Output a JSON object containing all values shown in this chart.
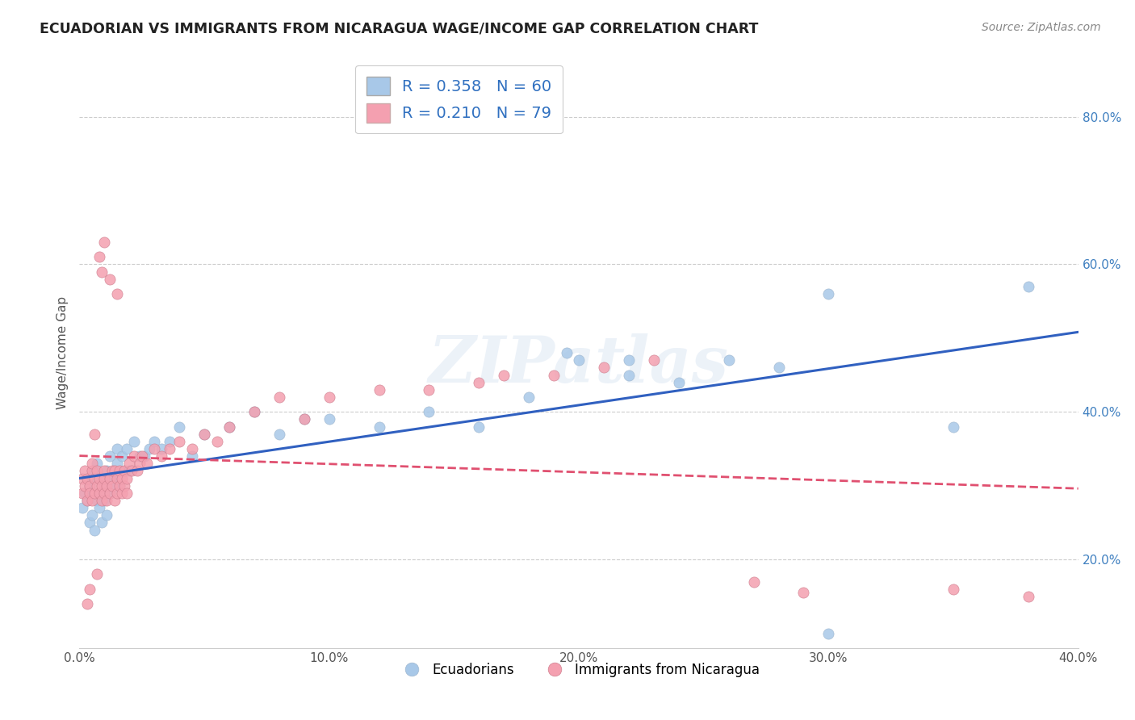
{
  "title": "ECUADORIAN VS IMMIGRANTS FROM NICARAGUA WAGE/INCOME GAP CORRELATION CHART",
  "source": "Source: ZipAtlas.com",
  "ylabel": "Wage/Income Gap",
  "xmin": 0.0,
  "xmax": 0.4,
  "ymin": 0.08,
  "ymax": 0.88,
  "yticks": [
    0.2,
    0.4,
    0.6,
    0.8
  ],
  "ytick_labels": [
    "20.0%",
    "40.0%",
    "60.0%",
    "80.0%"
  ],
  "xticks": [
    0.0,
    0.1,
    0.2,
    0.3,
    0.4
  ],
  "xtick_labels": [
    "0.0%",
    "10.0%",
    "20.0%",
    "30.0%",
    "40.0%"
  ],
  "blue_R": 0.358,
  "blue_N": 60,
  "pink_R": 0.21,
  "pink_N": 79,
  "blue_color": "#a8c8e8",
  "pink_color": "#f4a0b0",
  "blue_line_color": "#3060c0",
  "pink_line_color": "#e05070",
  "watermark": "ZIPatlas",
  "legend_label_blue": "Ecuadorians",
  "legend_label_pink": "Immigrants from Nicaragua",
  "blue_scatter_x": [
    0.001,
    0.002,
    0.003,
    0.004,
    0.004,
    0.005,
    0.005,
    0.006,
    0.006,
    0.007,
    0.007,
    0.008,
    0.008,
    0.009,
    0.009,
    0.01,
    0.01,
    0.011,
    0.011,
    0.012,
    0.012,
    0.013,
    0.014,
    0.015,
    0.015,
    0.016,
    0.017,
    0.018,
    0.019,
    0.02,
    0.022,
    0.024,
    0.026,
    0.028,
    0.03,
    0.033,
    0.036,
    0.04,
    0.045,
    0.05,
    0.06,
    0.07,
    0.08,
    0.09,
    0.1,
    0.12,
    0.14,
    0.16,
    0.18,
    0.2,
    0.22,
    0.24,
    0.26,
    0.28,
    0.3,
    0.22,
    0.195,
    0.38,
    0.3,
    0.35
  ],
  "blue_scatter_y": [
    0.27,
    0.29,
    0.28,
    0.3,
    0.25,
    0.31,
    0.26,
    0.32,
    0.24,
    0.33,
    0.28,
    0.27,
    0.29,
    0.31,
    0.25,
    0.3,
    0.28,
    0.32,
    0.26,
    0.29,
    0.34,
    0.31,
    0.3,
    0.33,
    0.35,
    0.3,
    0.34,
    0.32,
    0.35,
    0.32,
    0.36,
    0.34,
    0.34,
    0.35,
    0.36,
    0.35,
    0.36,
    0.38,
    0.34,
    0.37,
    0.38,
    0.4,
    0.37,
    0.39,
    0.39,
    0.38,
    0.4,
    0.38,
    0.42,
    0.47,
    0.45,
    0.44,
    0.47,
    0.46,
    0.56,
    0.47,
    0.48,
    0.57,
    0.1,
    0.38
  ],
  "pink_scatter_x": [
    0.001,
    0.001,
    0.002,
    0.002,
    0.003,
    0.003,
    0.004,
    0.004,
    0.005,
    0.005,
    0.005,
    0.006,
    0.006,
    0.007,
    0.007,
    0.008,
    0.008,
    0.009,
    0.009,
    0.01,
    0.01,
    0.01,
    0.011,
    0.011,
    0.012,
    0.012,
    0.013,
    0.013,
    0.014,
    0.014,
    0.015,
    0.015,
    0.016,
    0.016,
    0.017,
    0.017,
    0.018,
    0.018,
    0.019,
    0.019,
    0.02,
    0.021,
    0.022,
    0.023,
    0.024,
    0.025,
    0.027,
    0.03,
    0.033,
    0.036,
    0.04,
    0.045,
    0.05,
    0.055,
    0.06,
    0.07,
    0.08,
    0.09,
    0.1,
    0.12,
    0.14,
    0.16,
    0.17,
    0.19,
    0.21,
    0.23,
    0.008,
    0.012,
    0.009,
    0.015,
    0.01,
    0.006,
    0.007,
    0.004,
    0.003,
    0.38,
    0.35,
    0.29,
    0.27
  ],
  "pink_scatter_y": [
    0.31,
    0.29,
    0.32,
    0.3,
    0.28,
    0.31,
    0.3,
    0.29,
    0.32,
    0.28,
    0.33,
    0.31,
    0.29,
    0.3,
    0.32,
    0.29,
    0.31,
    0.3,
    0.28,
    0.31,
    0.29,
    0.32,
    0.3,
    0.28,
    0.31,
    0.29,
    0.32,
    0.3,
    0.28,
    0.32,
    0.31,
    0.29,
    0.32,
    0.3,
    0.29,
    0.31,
    0.32,
    0.3,
    0.31,
    0.29,
    0.33,
    0.32,
    0.34,
    0.32,
    0.33,
    0.34,
    0.33,
    0.35,
    0.34,
    0.35,
    0.36,
    0.35,
    0.37,
    0.36,
    0.38,
    0.4,
    0.42,
    0.39,
    0.42,
    0.43,
    0.43,
    0.44,
    0.45,
    0.45,
    0.46,
    0.47,
    0.61,
    0.58,
    0.59,
    0.56,
    0.63,
    0.37,
    0.18,
    0.16,
    0.14,
    0.15,
    0.16,
    0.155,
    0.17
  ]
}
